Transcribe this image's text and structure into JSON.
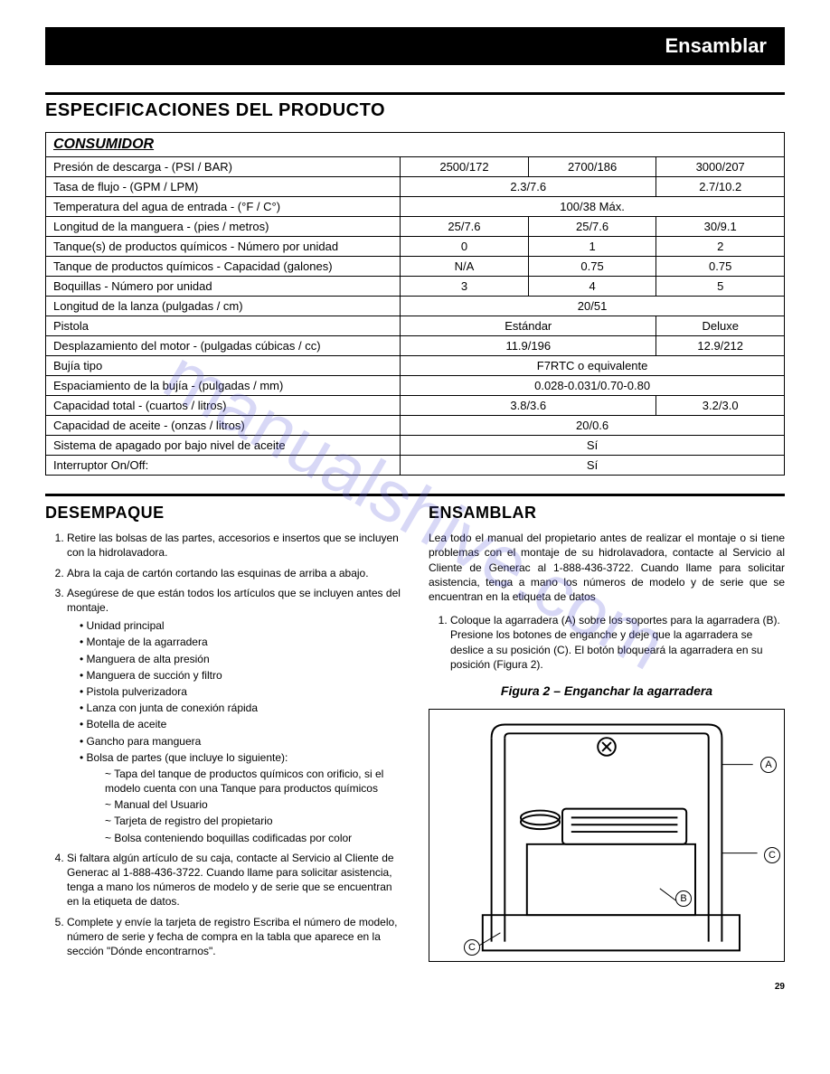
{
  "header": {
    "title": "Ensamblar"
  },
  "watermark": "manualshive.com",
  "page_number": "29",
  "specs": {
    "heading": "ESPECIFICACIONES DEL PRODUCTO",
    "subheading": "CONSUMIDOR",
    "rows": [
      {
        "label": "Presión de descarga - (PSI / BAR)",
        "cells": [
          "2500/172",
          "2700/186",
          "3000/207"
        ],
        "spans": [
          1,
          1,
          1
        ]
      },
      {
        "label": "Tasa de flujo - (GPM / LPM)",
        "cells": [
          "2.3/7.6",
          "2.7/10.2"
        ],
        "spans": [
          2,
          1
        ]
      },
      {
        "label": "Temperatura del agua de entrada - (°F / C°)",
        "cells": [
          "100/38 Máx."
        ],
        "spans": [
          3
        ]
      },
      {
        "label": "Longitud de la manguera - (pies / metros)",
        "cells": [
          "25/7.6",
          "25/7.6",
          "30/9.1"
        ],
        "spans": [
          1,
          1,
          1
        ]
      },
      {
        "label": "Tanque(s) de productos químicos - Número por unidad",
        "cells": [
          "0",
          "1",
          "2"
        ],
        "spans": [
          1,
          1,
          1
        ]
      },
      {
        "label": "Tanque de productos químicos - Capacidad (galones)",
        "cells": [
          "N/A",
          "0.75",
          "0.75"
        ],
        "spans": [
          1,
          1,
          1
        ]
      },
      {
        "label": "Boquillas - Número por unidad",
        "cells": [
          "3",
          "4",
          "5"
        ],
        "spans": [
          1,
          1,
          1
        ]
      },
      {
        "label": "Longitud de la lanza (pulgadas / cm)",
        "cells": [
          "20/51"
        ],
        "spans": [
          3
        ]
      },
      {
        "label": "Pistola",
        "cells": [
          "Estándar",
          "Deluxe"
        ],
        "spans": [
          2,
          1
        ]
      },
      {
        "label": "Desplazamiento del motor - (pulgadas cúbicas / cc)",
        "cells": [
          "11.9/196",
          "12.9/212"
        ],
        "spans": [
          2,
          1
        ]
      },
      {
        "label": "Bujía tipo",
        "cells": [
          "F7RTC o equivalente"
        ],
        "spans": [
          3
        ]
      },
      {
        "label": "Espaciamiento de la bujía - (pulgadas / mm)",
        "cells": [
          "0.028-0.031/0.70-0.80"
        ],
        "spans": [
          3
        ]
      },
      {
        "label": "Capacidad total - (cuartos / litros)",
        "cells": [
          "3.8/3.6",
          "3.2/3.0"
        ],
        "spans": [
          2,
          1
        ]
      },
      {
        "label": "Capacidad de aceite - (onzas / litros)",
        "cells": [
          "20/0.6"
        ],
        "spans": [
          3
        ]
      },
      {
        "label": "Sistema de apagado por bajo nivel de aceite",
        "cells": [
          "Sí"
        ],
        "spans": [
          3
        ]
      },
      {
        "label": "Interruptor On/Off:",
        "cells": [
          "Sí"
        ],
        "spans": [
          3
        ]
      }
    ]
  },
  "desempaque": {
    "heading": "DESEMPAQUE",
    "items": [
      "Retire las bolsas de las partes, accesorios e insertos que se incluyen con la hidrolavadora.",
      "Abra la caja de cartón cortando las esquinas de arriba a abajo.",
      "Asegúrese de que están todos los artículos que se incluyen antes del montaje."
    ],
    "sub_items": [
      "Unidad principal",
      "Montaje de la agarradera",
      "Manguera de alta presión",
      "Manguera de succión y filtro",
      "Pistola pulverizadora",
      "Lanza con junta de conexión rápida",
      "Botella de aceite",
      "Gancho para manguera",
      "Bolsa de partes (que incluye lo siguiente):"
    ],
    "tilde_items": [
      "Tapa del tanque de productos químicos con orificio, si el modelo cuenta con una Tanque para productos químicos",
      "Manual del Usuario",
      "Tarjeta de registro del propietario",
      "Bolsa conteniendo boquillas codificadas por color"
    ],
    "items_tail": [
      "Si faltara algún artículo de su caja, contacte al Servicio al Cliente de Generac al 1-888-436-3722. Cuando llame para solicitar asistencia, tenga a mano los números de modelo y de serie que se encuentran en la etiqueta de datos.",
      "Complete y envíe la tarjeta de registro Escriba el número de modelo, número de serie y fecha de compra en la tabla que aparece en la sección \"Dónde encontrarnos\"."
    ]
  },
  "ensamblar": {
    "heading": "ENSAMBLAR",
    "intro": "Lea todo el manual del propietario antes de realizar el montaje o si tiene problemas con el montaje de su hidrolavadora, contacte al Servicio al Cliente de Generac al 1-888-436-3722. Cuando llame para solicitar asistencia, tenga a mano los números de modelo y de serie que se encuentran en la etiqueta de datos",
    "step1": "Coloque la agarradera (A) sobre los soportes para la agarradera (B). Presione los botones de enganche y deje que la agarradera se deslice a su posición (C). El botón bloqueará la agarradera en su posición (Figura 2).",
    "figure_title": "Figura 2 – Enganchar la agarradera",
    "labels": {
      "a": "A",
      "b": "B",
      "c1": "C",
      "c2": "C"
    }
  }
}
